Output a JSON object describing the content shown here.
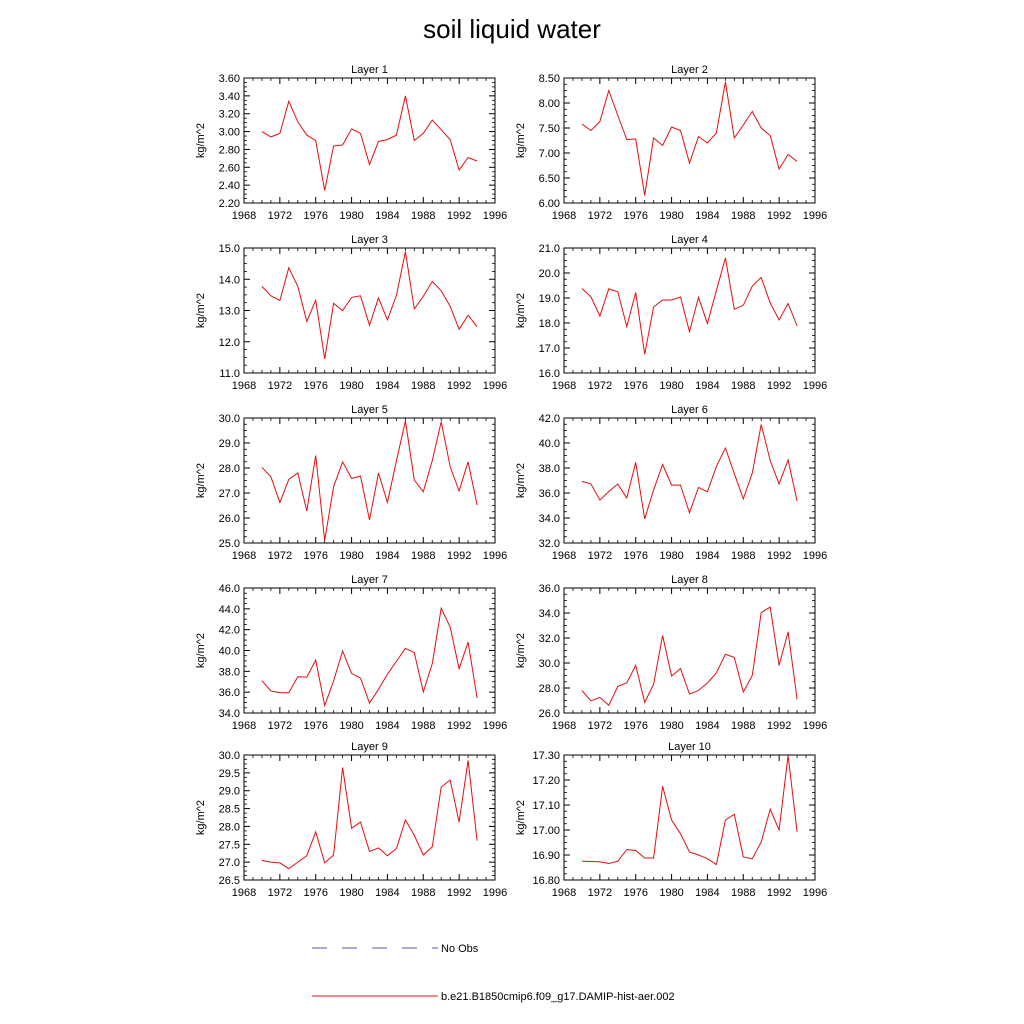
{
  "title": "soil liquid water",
  "legend": [
    {
      "label": "No Obs",
      "color": "#5a5aa8",
      "style": "dashed"
    },
    {
      "label": "b.e21.B1850cmip6.f09_g17.DAMIP-hist-aer.002",
      "color": "#e01010",
      "style": "solid"
    }
  ],
  "line_color": "#e01010",
  "chart_data": [
    {
      "type": "line",
      "title": "Layer 1",
      "ylabel": "kg/m^2",
      "xlim": [
        1968,
        1996
      ],
      "ylim": [
        2.2,
        3.6
      ],
      "xticks": [
        "1968",
        "1972",
        "1976",
        "1980",
        "1984",
        "1988",
        "1992",
        "1996"
      ],
      "yticks": [
        "2.20",
        "2.40",
        "2.60",
        "2.80",
        "3.00",
        "3.20",
        "3.40",
        "3.60"
      ],
      "x": [
        1970,
        1971,
        1972,
        1973,
        1974,
        1975,
        1976,
        1977,
        1978,
        1979,
        1980,
        1981,
        1982,
        1983,
        1984,
        1985,
        1986,
        1987,
        1988,
        1989,
        1990,
        1991,
        1992,
        1993,
        1994
      ],
      "values": [
        3.0,
        2.94,
        2.98,
        3.34,
        3.11,
        2.96,
        2.9,
        2.34,
        2.84,
        2.85,
        3.03,
        2.98,
        2.63,
        2.89,
        2.91,
        2.96,
        3.4,
        2.9,
        2.98,
        3.13,
        3.02,
        2.91,
        2.57,
        2.71,
        2.67
      ]
    },
    {
      "type": "line",
      "title": "Layer 2",
      "ylabel": "kg/m^2",
      "xlim": [
        1968,
        1996
      ],
      "ylim": [
        6.0,
        8.5
      ],
      "xticks": [
        "1968",
        "1972",
        "1976",
        "1980",
        "1984",
        "1988",
        "1992",
        "1996"
      ],
      "yticks": [
        "6.00",
        "6.50",
        "7.00",
        "7.50",
        "8.00",
        "8.50"
      ],
      "x": [
        1970,
        1971,
        1972,
        1973,
        1974,
        1975,
        1976,
        1977,
        1978,
        1979,
        1980,
        1981,
        1982,
        1983,
        1984,
        1985,
        1986,
        1987,
        1988,
        1989,
        1990,
        1991,
        1992,
        1993,
        1994
      ],
      "values": [
        7.58,
        7.45,
        7.63,
        8.25,
        7.75,
        7.27,
        7.28,
        6.15,
        7.3,
        7.15,
        7.52,
        7.45,
        6.8,
        7.33,
        7.2,
        7.4,
        8.42,
        7.3,
        7.56,
        7.83,
        7.5,
        7.35,
        6.68,
        6.97,
        6.83
      ]
    },
    {
      "type": "line",
      "title": "Layer 3",
      "ylabel": "kg/m^2",
      "xlim": [
        1968,
        1996
      ],
      "ylim": [
        11.0,
        15.0
      ],
      "xticks": [
        "1968",
        "1972",
        "1976",
        "1980",
        "1984",
        "1988",
        "1992",
        "1996"
      ],
      "yticks": [
        "11.0",
        "12.0",
        "13.0",
        "14.0",
        "15.0"
      ],
      "x": [
        1970,
        1971,
        1972,
        1973,
        1974,
        1975,
        1976,
        1977,
        1978,
        1979,
        1980,
        1981,
        1982,
        1983,
        1984,
        1985,
        1986,
        1987,
        1988,
        1989,
        1990,
        1991,
        1992,
        1993,
        1994
      ],
      "values": [
        13.77,
        13.47,
        13.32,
        14.37,
        13.77,
        12.65,
        13.33,
        11.45,
        13.23,
        13.0,
        13.42,
        13.47,
        12.53,
        13.4,
        12.7,
        13.48,
        14.88,
        13.05,
        13.45,
        13.93,
        13.63,
        13.13,
        12.4,
        12.85,
        12.48
      ]
    },
    {
      "type": "line",
      "title": "Layer 4",
      "ylabel": "kg/m^2",
      "xlim": [
        1968,
        1996
      ],
      "ylim": [
        16.0,
        21.0
      ],
      "xticks": [
        "1968",
        "1972",
        "1976",
        "1980",
        "1984",
        "1988",
        "1992",
        "1996"
      ],
      "yticks": [
        "16.0",
        "17.0",
        "18.0",
        "19.0",
        "20.0",
        "21.0"
      ],
      "x": [
        1970,
        1971,
        1972,
        1973,
        1974,
        1975,
        1976,
        1977,
        1978,
        1979,
        1980,
        1981,
        1982,
        1983,
        1984,
        1985,
        1986,
        1987,
        1988,
        1989,
        1990,
        1991,
        1992,
        1993,
        1994
      ],
      "values": [
        19.38,
        19.05,
        18.28,
        19.37,
        19.25,
        17.86,
        19.22,
        16.75,
        18.64,
        18.92,
        18.92,
        19.04,
        17.65,
        19.03,
        17.98,
        19.3,
        20.6,
        18.55,
        18.71,
        19.48,
        19.82,
        18.8,
        18.12,
        18.78,
        17.88
      ]
    },
    {
      "type": "line",
      "title": "Layer 5",
      "ylabel": "kg/m^2",
      "xlim": [
        1968,
        1996
      ],
      "ylim": [
        25.0,
        30.0
      ],
      "xticks": [
        "1968",
        "1972",
        "1976",
        "1980",
        "1984",
        "1988",
        "1992",
        "1996"
      ],
      "yticks": [
        "25.0",
        "26.0",
        "27.0",
        "28.0",
        "29.0",
        "30.0"
      ],
      "x": [
        1970,
        1971,
        1972,
        1973,
        1974,
        1975,
        1976,
        1977,
        1978,
        1979,
        1980,
        1981,
        1982,
        1983,
        1984,
        1985,
        1986,
        1987,
        1988,
        1989,
        1990,
        1991,
        1992,
        1993,
        1994
      ],
      "values": [
        28.03,
        27.65,
        26.62,
        27.55,
        27.8,
        26.28,
        28.5,
        25.1,
        27.25,
        28.25,
        27.58,
        27.68,
        25.92,
        27.8,
        26.62,
        28.28,
        29.88,
        27.52,
        27.05,
        28.3,
        29.85,
        28.05,
        27.08,
        28.25,
        26.52
      ]
    },
    {
      "type": "line",
      "title": "Layer 6",
      "ylabel": "kg/m^2",
      "xlim": [
        1968,
        1996
      ],
      "ylim": [
        32.0,
        42.0
      ],
      "xticks": [
        "1968",
        "1972",
        "1976",
        "1980",
        "1984",
        "1988",
        "1992",
        "1996"
      ],
      "yticks": [
        "32.0",
        "34.0",
        "36.0",
        "38.0",
        "40.0",
        "42.0"
      ],
      "x": [
        1970,
        1971,
        1972,
        1973,
        1974,
        1975,
        1976,
        1977,
        1978,
        1979,
        1980,
        1981,
        1982,
        1983,
        1984,
        1985,
        1986,
        1987,
        1988,
        1989,
        1990,
        1991,
        1992,
        1993,
        1994
      ],
      "values": [
        36.93,
        36.73,
        35.43,
        36.12,
        36.72,
        35.6,
        38.45,
        33.93,
        36.25,
        38.28,
        36.63,
        36.63,
        34.42,
        36.45,
        36.1,
        38.13,
        39.6,
        37.55,
        35.53,
        37.6,
        41.48,
        38.6,
        36.73,
        38.65,
        35.35
      ]
    },
    {
      "type": "line",
      "title": "Layer 7",
      "ylabel": "kg/m^2",
      "xlim": [
        1968,
        1996
      ],
      "ylim": [
        34.0,
        46.0
      ],
      "xticks": [
        "1968",
        "1972",
        "1976",
        "1980",
        "1984",
        "1988",
        "1992",
        "1996"
      ],
      "yticks": [
        "34.0",
        "36.0",
        "38.0",
        "40.0",
        "42.0",
        "44.0",
        "46.0"
      ],
      "x": [
        1970,
        1971,
        1972,
        1973,
        1974,
        1975,
        1976,
        1977,
        1978,
        1979,
        1980,
        1981,
        1982,
        1983,
        1984,
        1985,
        1986,
        1987,
        1988,
        1989,
        1990,
        1991,
        1992,
        1993,
        1994
      ],
      "values": [
        37.1,
        36.12,
        35.95,
        35.95,
        37.48,
        37.45,
        39.08,
        34.72,
        37.08,
        39.95,
        37.8,
        37.35,
        34.95,
        36.28,
        37.72,
        38.95,
        40.2,
        39.8,
        36.03,
        38.75,
        44.05,
        42.25,
        38.25,
        40.8,
        35.43
      ]
    },
    {
      "type": "line",
      "title": "Layer 8",
      "ylabel": "kg/m^2",
      "xlim": [
        1968,
        1996
      ],
      "ylim": [
        26.0,
        36.0
      ],
      "xticks": [
        "1968",
        "1972",
        "1976",
        "1980",
        "1984",
        "1988",
        "1992",
        "1996"
      ],
      "yticks": [
        "26.0",
        "28.0",
        "30.0",
        "32.0",
        "34.0",
        "36.0"
      ],
      "x": [
        1970,
        1971,
        1972,
        1973,
        1974,
        1975,
        1976,
        1977,
        1978,
        1979,
        1980,
        1981,
        1982,
        1983,
        1984,
        1985,
        1986,
        1987,
        1988,
        1989,
        1990,
        1991,
        1992,
        1993,
        1994
      ],
      "values": [
        27.8,
        26.98,
        27.25,
        26.62,
        28.13,
        28.42,
        29.82,
        26.85,
        28.3,
        32.2,
        28.95,
        29.55,
        27.52,
        27.8,
        28.4,
        29.22,
        30.7,
        30.45,
        27.68,
        29.0,
        34.03,
        34.47,
        29.8,
        32.5,
        27.1
      ]
    },
    {
      "type": "line",
      "title": "Layer 9",
      "ylabel": "kg/m^2",
      "xlim": [
        1968,
        1996
      ],
      "ylim": [
        26.5,
        30.0
      ],
      "xticks": [
        "1968",
        "1972",
        "1976",
        "1980",
        "1984",
        "1988",
        "1992",
        "1996"
      ],
      "yticks": [
        "26.5",
        "27.0",
        "27.5",
        "28.0",
        "28.5",
        "29.0",
        "29.5",
        "30.0"
      ],
      "x": [
        1970,
        1971,
        1972,
        1973,
        1974,
        1975,
        1976,
        1977,
        1978,
        1979,
        1980,
        1981,
        1982,
        1983,
        1984,
        1985,
        1986,
        1987,
        1988,
        1989,
        1990,
        1991,
        1992,
        1993,
        1994
      ],
      "values": [
        27.05,
        27.0,
        26.98,
        26.82,
        27.0,
        27.18,
        27.85,
        26.98,
        27.2,
        29.65,
        27.95,
        28.12,
        27.3,
        27.4,
        27.18,
        27.38,
        28.18,
        27.75,
        27.2,
        27.43,
        29.1,
        29.3,
        28.12,
        29.85,
        27.6
      ]
    },
    {
      "type": "line",
      "title": "Layer 10",
      "ylabel": "kg/m^2",
      "xlim": [
        1968,
        1996
      ],
      "ylim": [
        16.8,
        17.3
      ],
      "xticks": [
        "1968",
        "1972",
        "1976",
        "1980",
        "1984",
        "1988",
        "1992",
        "1996"
      ],
      "yticks": [
        "16.80",
        "16.90",
        "17.00",
        "17.10",
        "17.20",
        "17.30"
      ],
      "x": [
        1970,
        1971,
        1972,
        1973,
        1974,
        1975,
        1976,
        1977,
        1978,
        1979,
        1980,
        1981,
        1982,
        1983,
        1984,
        1985,
        1986,
        1987,
        1988,
        1989,
        1990,
        1991,
        1992,
        1993,
        1994
      ],
      "values": [
        16.875,
        16.874,
        16.873,
        16.866,
        16.875,
        16.922,
        16.918,
        16.888,
        16.888,
        17.175,
        17.04,
        16.985,
        16.912,
        16.9,
        16.885,
        16.862,
        17.04,
        17.063,
        16.892,
        16.885,
        16.952,
        17.083,
        17.0,
        17.298,
        16.993
      ]
    }
  ]
}
